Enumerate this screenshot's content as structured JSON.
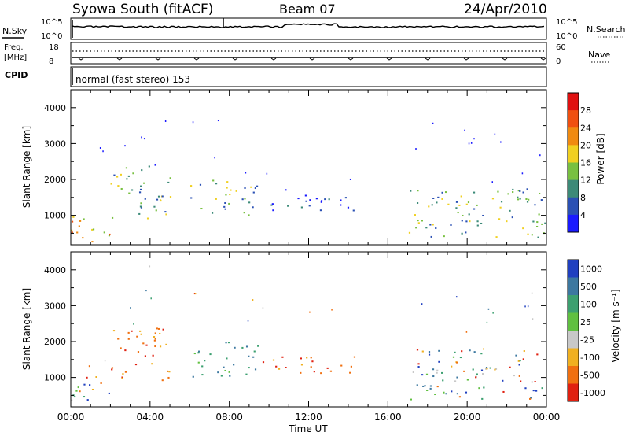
{
  "header": {
    "station": "Syowa South (fitACF)",
    "beam": "Beam 07",
    "date": "24/Apr/2010"
  },
  "status_panels": {
    "nsky_label": "N.Sky",
    "nsearch_label": "N.Search",
    "freq_label_top": "Freq.",
    "freq_label_unit": "[MHz]",
    "nave_label": "Nave",
    "cpid_label": "CPID",
    "cpid_text": "normal (fast stereo) 153",
    "noise_ticks": [
      "10^5",
      "10^0"
    ],
    "freq_ticks": [
      "18",
      "8"
    ],
    "nave_ticks": [
      "60",
      "0"
    ]
  },
  "chart_data": [
    {
      "type": "heatmap",
      "name": "power-panel",
      "xlabel": "",
      "ylabel": "Slant Range [km]",
      "xlim": [
        0,
        24
      ],
      "ylim": [
        180,
        4500
      ],
      "yticks": [
        1000,
        2000,
        3000,
        4000
      ],
      "colorbar": {
        "label": "Power [dB]",
        "ticks": [
          "4",
          "8",
          "12",
          "16",
          "20",
          "24",
          "28"
        ],
        "colors": [
          "#1a1aff",
          "#2a50b4",
          "#3c8a78",
          "#78c040",
          "#f0d020",
          "#f08a10",
          "#f05010",
          "#e01010"
        ]
      },
      "echo_regions": [
        {
          "t_start": 0.0,
          "t_end": 2.0,
          "range_start": 200,
          "range_end": 1100,
          "level": "high"
        },
        {
          "t_start": 2.0,
          "t_end": 5.0,
          "range_start": 900,
          "range_end": 2400,
          "level": "medium"
        },
        {
          "t_start": 6.0,
          "t_end": 9.5,
          "range_start": 1000,
          "range_end": 2000,
          "level": "medium"
        },
        {
          "t_start": 9.5,
          "t_end": 14.5,
          "range_start": 1100,
          "range_end": 1600,
          "level": "low"
        },
        {
          "t_start": 17.0,
          "t_end": 24.0,
          "range_start": 400,
          "range_end": 1800,
          "level": "medium"
        }
      ]
    },
    {
      "type": "heatmap",
      "name": "velocity-panel",
      "xlabel": "Time UT",
      "ylabel": "Slant Range [km]",
      "xlim": [
        0,
        24
      ],
      "ylim": [
        180,
        4500
      ],
      "xtick_labels": [
        "00:00",
        "04:00",
        "08:00",
        "12:00",
        "16:00",
        "20:00",
        "00:00"
      ],
      "xtick_values": [
        0,
        4,
        8,
        12,
        16,
        20,
        24
      ],
      "yticks": [
        1000,
        2000,
        3000,
        4000
      ],
      "colorbar": {
        "label": "Velocity [m s⁻¹]",
        "ticks": [
          "1000",
          "500",
          "100",
          "25",
          "-25",
          "-100",
          "-500",
          "-1000"
        ],
        "colors": [
          "#2040c0",
          "#3c78a0",
          "#3ca070",
          "#60c040",
          "#c8c8c8",
          "#f0b020",
          "#f07010",
          "#e02010"
        ]
      },
      "echo_regions": [
        {
          "t_start": 0.0,
          "t_end": 2.0,
          "range_start": 200,
          "range_end": 1100,
          "level": "mixed"
        },
        {
          "t_start": 2.0,
          "t_end": 5.0,
          "range_start": 900,
          "range_end": 2400,
          "level": "negative"
        },
        {
          "t_start": 6.0,
          "t_end": 9.5,
          "range_start": 1000,
          "range_end": 2000,
          "level": "positive"
        },
        {
          "t_start": 9.5,
          "t_end": 14.5,
          "range_start": 1100,
          "range_end": 1600,
          "level": "negative"
        },
        {
          "t_start": 17.0,
          "t_end": 24.0,
          "range_start": 400,
          "range_end": 1800,
          "level": "mixed"
        }
      ]
    }
  ]
}
